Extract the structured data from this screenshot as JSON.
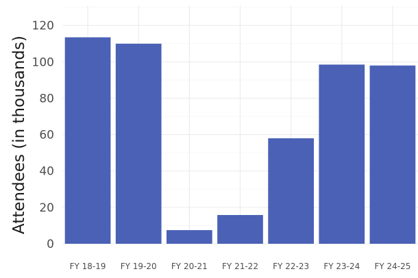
{
  "chart_data": {
    "type": "bar",
    "categories": [
      "FY 18-19",
      "FY 19-20",
      "FY 20-21",
      "FY 21-22",
      "FY 22-23",
      "FY 23-24",
      "FY 24-25"
    ],
    "values": [
      113.5,
      110,
      7.5,
      15.8,
      58,
      98.5,
      98
    ],
    "ylabel": "Attendees (in thousands)",
    "xlabel": "",
    "ylim": [
      0,
      131
    ],
    "yticks": [
      0,
      20,
      40,
      60,
      80,
      100,
      120
    ],
    "bar_color": "#4a61b5",
    "grid": true
  }
}
